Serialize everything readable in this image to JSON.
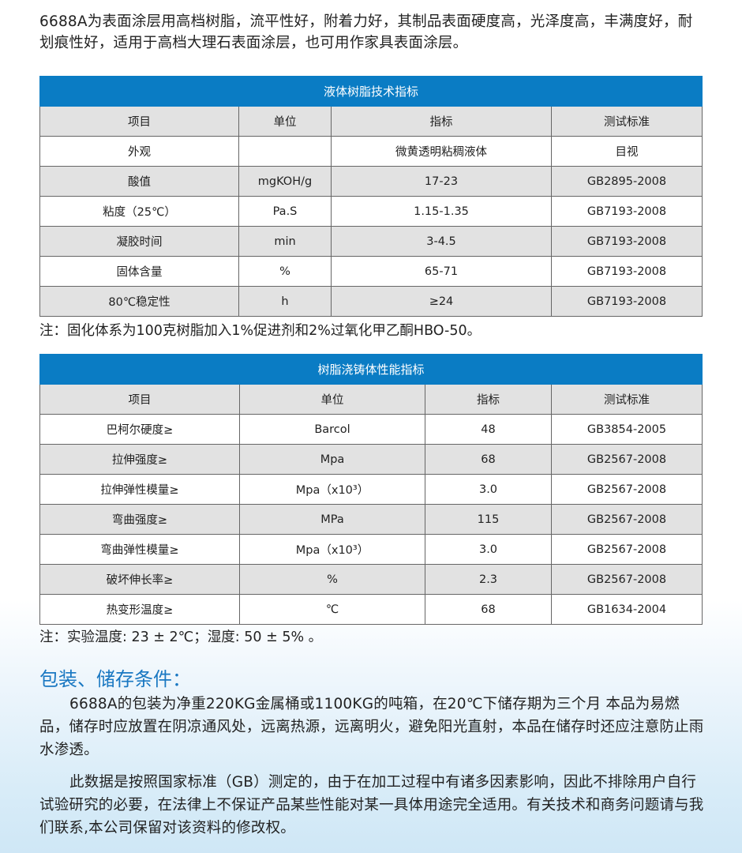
{
  "intro": "6688A为表面涂层用高档树脂，流平性好，附着力好，其制品表面硬度高，光泽度高，丰满度好，耐划痕性好，适用于高档大理石表面涂层，也可用作家具表面涂层。",
  "table1": {
    "title": "液体树脂技术指标",
    "headers": [
      "项目",
      "单位",
      "指标",
      "测试标准"
    ],
    "rows": [
      [
        "外观",
        "",
        "微黄透明粘稠液体",
        "目视"
      ],
      [
        "酸值",
        "mgKOH/g",
        "17-23",
        "GB2895-2008"
      ],
      [
        "粘度（25℃）",
        "Pa.S",
        "1.15-1.35",
        "GB7193-2008"
      ],
      [
        "凝胶时间",
        "min",
        "3-4.5",
        "GB7193-2008"
      ],
      [
        "固体含量",
        "%",
        "65-71",
        "GB7193-2008"
      ],
      [
        "80℃稳定性",
        "h",
        "≥24",
        "GB7193-2008"
      ]
    ],
    "note": "注：固化体系为100克树脂加入1%促进剂和2%过氧化甲乙酮HBO-50。"
  },
  "table2": {
    "title": "树脂浇铸体性能指标",
    "headers": [
      "项目",
      "单位",
      "指标",
      "测试标准"
    ],
    "rows": [
      [
        "巴柯尔硬度≥",
        "Barcol",
        "48",
        "GB3854-2005"
      ],
      [
        "拉伸强度≥",
        "Mpa",
        "68",
        "GB2567-2008"
      ],
      [
        "拉伸弹性模量≥",
        "Mpa（x10³）",
        "3.0",
        "GB2567-2008"
      ],
      [
        "弯曲强度≥",
        "MPa",
        "115",
        "GB2567-2008"
      ],
      [
        "弯曲弹性模量≥",
        "Mpa（x10³）",
        "3.0",
        "GB2567-2008"
      ],
      [
        "破坏伸长率≥",
        "%",
        "2.3",
        "GB2567-2008"
      ],
      [
        "热变形温度≥",
        "℃",
        "68",
        "GB1634-2004"
      ]
    ],
    "note": "注：实验温度: 23 ± 2℃；湿度: 50 ± 5% 。"
  },
  "storage": {
    "title": "包装、储存条件：",
    "para1": "6688A的包装为净重220KG金属桶或1100KG的吨箱，在20℃下储存期为三个月 本品为易燃品，储存时应放置在阴凉通风处，远离热源，远离明火，避免阳光直射，本品在储存时还应注意防止雨水渗透。",
    "para2": "此数据是按照国家标准（GB）测定的，由于在加工过程中有诸多因素影响，因此不排除用户自行试验研究的必要，在法律上不保证产品某些性能对某一具体用途完全适用。有关技术和商务问题请与我们联系,本公司保留对该资料的修改权。"
  },
  "colors": {
    "header": "#0a7cc4",
    "title": "#1a78c2",
    "row_alt": "#e2e2e2"
  }
}
